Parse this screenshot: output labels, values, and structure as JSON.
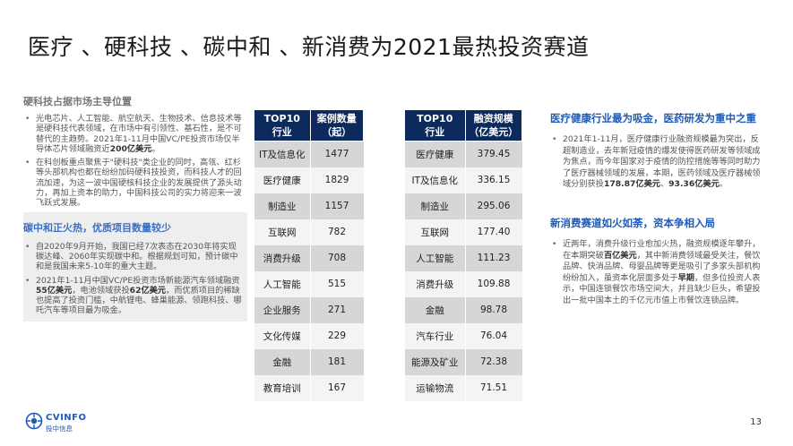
{
  "title": "医疗 、硬科技 、碳中和 、新消费为2021最热投资赛道",
  "left": {
    "section1_head": "硬科技占据市场主导位置",
    "section1_bullets": [
      {
        "pre": "光电芯片、人工智能、航空航天、生物技术、信息技术等是硬科技代表领域，在市场中有引领性、基石性，是不可替代的主趋势。2021年1-11月中国VC/PE投资市场仅半导体芯片领域融资近",
        "hl": "200亿美元",
        "post": "。"
      },
      {
        "pre": "在科创板重点聚焦于\"硬科技\"类企业的同时，高瓴、红杉等头部机构也都在纷纷加码硬科技投资，而科技人才的回流加速，为这一波中国硬核科技企业的发展提供了源头动力，再加上资本的助力，中国科技公司的实力将迎来一波飞跃式发展。",
        "hl": "",
        "post": ""
      }
    ],
    "section2_head": "碳中和正火热，优质项目数量较少",
    "section2_bullets": [
      {
        "pre": "自2020年9月开始，我国已经7次表态在2030年将实现碳达峰、2060年实现碳中和。根据规划可知，预计碳中和是我国未来5-10年的重大主题。",
        "hl": "",
        "post": ""
      },
      {
        "pre": "2021年1-11月中国VC/PE投资市场新能源汽车领域融资",
        "hl": "55亿美元",
        "post": "，电池领域获投",
        "hl2": "62亿美元",
        "post2": "，而优质项目的稀缺也提高了投资门槛，中航锂电、蜂巢能源、领跑科技、哪吒汽车等项目最为吸金。"
      }
    ]
  },
  "table1": {
    "headers": [
      "TOP10\n行业",
      "案例数量\n（起）"
    ],
    "rows": [
      [
        "IT及信息化",
        "1477"
      ],
      [
        "医疗健康",
        "1829"
      ],
      [
        "制造业",
        "1157"
      ],
      [
        "互联网",
        "782"
      ],
      [
        "消费升级",
        "708"
      ],
      [
        "人工智能",
        "515"
      ],
      [
        "企业服务",
        "271"
      ],
      [
        "文化传媒",
        "229"
      ],
      [
        "金融",
        "181"
      ],
      [
        "教育培训",
        "167"
      ]
    ]
  },
  "table2": {
    "headers": [
      "TOP10\n行业",
      "融资规模\n（亿美元）"
    ],
    "rows": [
      [
        "医疗健康",
        "379.45"
      ],
      [
        "IT及信息化",
        "336.15"
      ],
      [
        "制造业",
        "295.06"
      ],
      [
        "互联网",
        "177.40"
      ],
      [
        "人工智能",
        "111.23"
      ],
      [
        "消费升级",
        "109.88"
      ],
      [
        "金融",
        "98.78"
      ],
      [
        "汽车行业",
        "76.04"
      ],
      [
        "能源及矿业",
        "72.38"
      ],
      [
        "运输物流",
        "71.51"
      ]
    ]
  },
  "right": {
    "section1_head": "医疗健康行业最为吸金，医药研发为重中之重",
    "section1_bullet": {
      "pre": "2021年1-11月，医疗健康行业融资规模最为突出，反超制造业，去年新冠疫情的爆发使得医药研发等领域成为焦点，而今年国家对于疫情的防控措施等等同时助力了医疗器械领域的发展，本期，医药领域及医疗器械领域分别获投",
      "hl": "178.87亿美元",
      "mid": "、",
      "hl2": "93.36亿美元",
      "post": "。"
    },
    "section2_head": "新消费赛道如火如荼，资本争相入局",
    "section2_bullet": {
      "pre": "近两年，消费升级行业愈加火热，融资规模逐年攀升，在本期突破",
      "hl": "百亿美元",
      "post": "，其中新消费领域最受关注，餐饮品牌、快消品牌、母婴品牌等更是吸引了多家头部机构纷纷加入，虽资本化层面多处于",
      "hl2": "早期",
      "post2": "，但多位投资人表示，中国连锁餐饮市场空间大，并且缺少巨头，希望投出一批中国本土的千亿元市值上市餐饮连锁品牌。"
    }
  },
  "footer": {
    "logo_text": "CVINFO",
    "logo_sub": "投中信息",
    "page_number": "13"
  },
  "colors": {
    "table_header": "#0d2a5c",
    "accent_blue": "#1f5bb8"
  }
}
